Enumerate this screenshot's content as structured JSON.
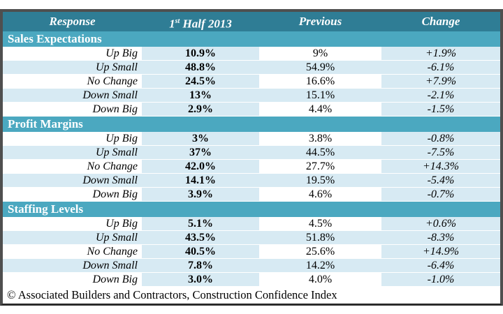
{
  "colors": {
    "border": "#4f4f4f",
    "header_bg": "#2f7d95",
    "section_bg": "#4ba8c0",
    "row_shade": "#d7eaf3",
    "header_text": "#ffffff"
  },
  "table": {
    "header": {
      "response": "Response",
      "half_num": "1",
      "half_sup": "st",
      "half_rest": " Half 2013",
      "previous": "Previous",
      "change": "Change"
    },
    "sections": [
      {
        "title": "Sales Expectations",
        "rows": [
          {
            "response": "Up Big",
            "half": "10.9%",
            "previous": "9%",
            "change": "+1.9%"
          },
          {
            "response": "Up Small",
            "half": "48.8%",
            "previous": "54.9%",
            "change": "-6.1%"
          },
          {
            "response": "No Change",
            "half": "24.5%",
            "previous": "16.6%",
            "change": "+7.9%"
          },
          {
            "response": "Down Small",
            "half": "13%",
            "previous": "15.1%",
            "change": "-2.1%"
          },
          {
            "response": "Down Big",
            "half": "2.9%",
            "previous": "4.4%",
            "change": "-1.5%"
          }
        ]
      },
      {
        "title": "Profit Margins",
        "rows": [
          {
            "response": "Up Big",
            "half": "3%",
            "previous": "3.8%",
            "change": "-0.8%"
          },
          {
            "response": "Up Small",
            "half": "37%",
            "previous": "44.5%",
            "change": "-7.5%"
          },
          {
            "response": "No Change",
            "half": "42.0%",
            "previous": "27.7%",
            "change": "+14.3%"
          },
          {
            "response": "Down Small",
            "half": "14.1%",
            "previous": "19.5%",
            "change": "-5.4%"
          },
          {
            "response": "Down Big",
            "half": "3.9%",
            "previous": "4.6%",
            "change": "-0.7%"
          }
        ]
      },
      {
        "title": "Staffing Levels",
        "rows": [
          {
            "response": "Up Big",
            "half": "5.1%",
            "previous": "4.5%",
            "change": "+0.6%"
          },
          {
            "response": "Up Small",
            "half": "43.5%",
            "previous": "51.8%",
            "change": "-8.3%"
          },
          {
            "response": "No Change",
            "half": "40.5%",
            "previous": "25.6%",
            "change": "+14.9%"
          },
          {
            "response": "Down Small",
            "half": "7.8%",
            "previous": "14.2%",
            "change": "-6.4%"
          },
          {
            "response": "Down Big",
            "half": "3.0%",
            "previous": "4.0%",
            "change": "-1.0%"
          }
        ]
      }
    ],
    "footer": "© Associated Builders and Contractors, Construction Confidence Index"
  },
  "chart_data": {
    "type": "table",
    "title": "Construction Confidence Index",
    "columns": [
      "Response",
      "1st Half 2013",
      "Previous",
      "Change"
    ],
    "sections": [
      {
        "name": "Sales Expectations",
        "rows": [
          [
            "Up Big",
            "10.9%",
            "9%",
            "+1.9%"
          ],
          [
            "Up Small",
            "48.8%",
            "54.9%",
            "-6.1%"
          ],
          [
            "No Change",
            "24.5%",
            "16.6%",
            "+7.9%"
          ],
          [
            "Down Small",
            "13%",
            "15.1%",
            "-2.1%"
          ],
          [
            "Down Big",
            "2.9%",
            "4.4%",
            "-1.5%"
          ]
        ]
      },
      {
        "name": "Profit Margins",
        "rows": [
          [
            "Up Big",
            "3%",
            "3.8%",
            "-0.8%"
          ],
          [
            "Up Small",
            "37%",
            "44.5%",
            "-7.5%"
          ],
          [
            "No Change",
            "42.0%",
            "27.7%",
            "+14.3%"
          ],
          [
            "Down Small",
            "14.1%",
            "19.5%",
            "-5.4%"
          ],
          [
            "Down Big",
            "3.9%",
            "4.6%",
            "-0.7%"
          ]
        ]
      },
      {
        "name": "Staffing Levels",
        "rows": [
          [
            "Up Big",
            "5.1%",
            "4.5%",
            "+0.6%"
          ],
          [
            "Up Small",
            "43.5%",
            "51.8%",
            "-8.3%"
          ],
          [
            "No Change",
            "40.5%",
            "25.6%",
            "+14.9%"
          ],
          [
            "Down Small",
            "7.8%",
            "14.2%",
            "-6.4%"
          ],
          [
            "Down Big",
            "3.0%",
            "4.0%",
            "-1.0%"
          ]
        ]
      }
    ],
    "source": "© Associated Builders and Contractors, Construction Confidence Index"
  }
}
